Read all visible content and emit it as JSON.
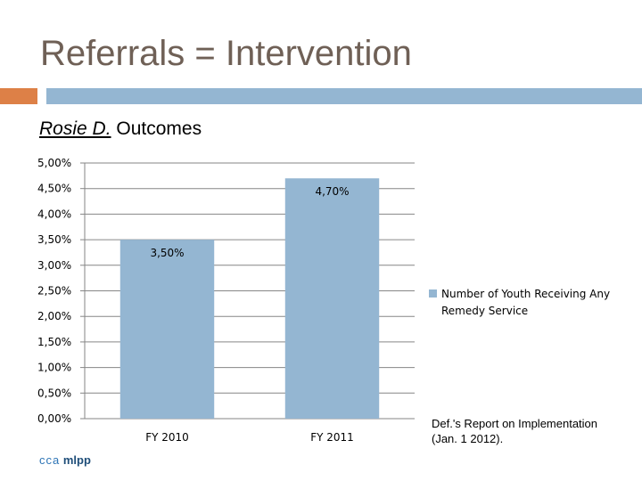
{
  "slide": {
    "title": "Referrals = Intervention",
    "subtitle_italic": "Rosie D.",
    "subtitle_rest": " Outcomes",
    "source_line1": "Def.'s Report on Implementation",
    "source_line2": "(Jan. 1 2012).",
    "logo_cca": "cca",
    "logo_mlpp": "mlpp",
    "accent_orange": "#dd8047",
    "accent_blue": "#94b6d2"
  },
  "chart_data": {
    "type": "bar",
    "categories": [
      "FY 2010",
      "FY 2011"
    ],
    "series": [
      {
        "name": "Number of Youth Receiving Any Remedy Service",
        "values": [
          3.5,
          4.7
        ],
        "color": "#94b6d2"
      }
    ],
    "data_labels": [
      "3,50%",
      "4,70%"
    ],
    "y_ticks": [
      "0,00%",
      "0,50%",
      "1,00%",
      "1,50%",
      "2,00%",
      "2,50%",
      "3,00%",
      "3,50%",
      "4,00%",
      "4,50%",
      "5,00%"
    ],
    "ylim": [
      0,
      5
    ],
    "ystep": 0.5,
    "title": "",
    "xlabel": "",
    "ylabel": "",
    "grid": true,
    "legend_position": "right"
  }
}
